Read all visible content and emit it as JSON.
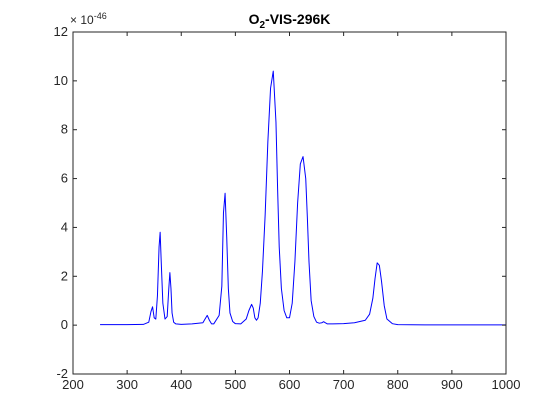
{
  "chart_data": {
    "type": "line",
    "title": {
      "base": "O",
      "sub": "2",
      "rest": "-VIS-296K"
    },
    "xlabel": "",
    "ylabel": "",
    "y_exponent_label": {
      "base": "× 10",
      "exp": "-46"
    },
    "xlim": [
      200,
      1000
    ],
    "ylim": [
      -2,
      12
    ],
    "x_ticks": [
      200,
      300,
      400,
      500,
      600,
      700,
      800,
      900,
      1000
    ],
    "y_ticks": [
      -2,
      0,
      2,
      4,
      6,
      8,
      10,
      12
    ],
    "grid": false,
    "legend": "none",
    "colors": {
      "series": "#0000ff",
      "axes": "#262626",
      "background": "#ffffff"
    },
    "series": [
      {
        "x": [
          250,
          300,
          330,
          340,
          344,
          347,
          350,
          353,
          356,
          359,
          361,
          363,
          366,
          370,
          374,
          377,
          379,
          381,
          383,
          386,
          390,
          400,
          420,
          440,
          444,
          448,
          452,
          456,
          460,
          470,
          475,
          478,
          481,
          484,
          487,
          490,
          495,
          500,
          510,
          520,
          525,
          530,
          533,
          536,
          539,
          542,
          546,
          550,
          555,
          560,
          565,
          570,
          575,
          578,
          581,
          585,
          590,
          595,
          600,
          605,
          610,
          615,
          620,
          625,
          630,
          633,
          636,
          640,
          645,
          650,
          655,
          660,
          663,
          666,
          670,
          680,
          700,
          720,
          740,
          748,
          754,
          758,
          762,
          766,
          770,
          775,
          780,
          790,
          800,
          850,
          900,
          950,
          1000
        ],
        "y": [
          0.02,
          0.02,
          0.03,
          0.12,
          0.55,
          0.75,
          0.3,
          0.25,
          1.2,
          3.2,
          3.8,
          2.6,
          0.9,
          0.25,
          0.35,
          1.5,
          2.15,
          1.5,
          0.5,
          0.12,
          0.05,
          0.03,
          0.05,
          0.1,
          0.25,
          0.4,
          0.2,
          0.05,
          0.05,
          0.4,
          1.6,
          4.6,
          5.4,
          3.6,
          1.5,
          0.5,
          0.15,
          0.06,
          0.05,
          0.25,
          0.6,
          0.85,
          0.7,
          0.3,
          0.2,
          0.3,
          0.9,
          2.2,
          4.5,
          7.5,
          9.7,
          10.4,
          8.3,
          5.6,
          3.2,
          1.5,
          0.6,
          0.3,
          0.3,
          0.9,
          2.6,
          5.0,
          6.6,
          6.9,
          6.0,
          4.4,
          2.6,
          1.0,
          0.35,
          0.12,
          0.08,
          0.1,
          0.14,
          0.1,
          0.05,
          0.05,
          0.06,
          0.1,
          0.2,
          0.45,
          1.1,
          1.9,
          2.55,
          2.45,
          1.8,
          0.8,
          0.25,
          0.06,
          0.02,
          0.01,
          0.01,
          0.01,
          0.01
        ]
      }
    ]
  }
}
